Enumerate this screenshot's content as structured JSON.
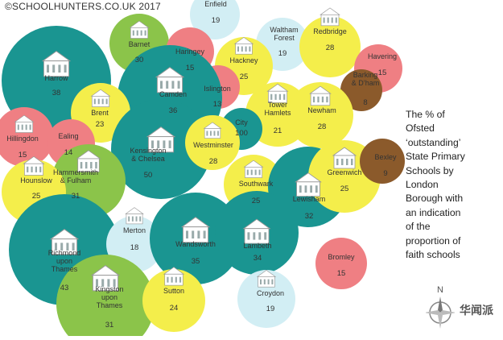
{
  "copyright": "©SCHOOLHUNTERS.CO.UK 2017",
  "caption_lines": [
    "The % of",
    "Ofsted",
    "‘outstanding’",
    "State Primary",
    "Schools by",
    "London",
    "Borough with",
    "an indication",
    "of the",
    "proportion of",
    "faith schools"
  ],
  "compass_label": "N",
  "watermark": "华闻派",
  "colors": {
    "teal": "#1a9591",
    "green": "#8bc44a",
    "yellow": "#f4ee4b",
    "pink": "#ef7f83",
    "lightblue": "#d2eef4",
    "brown": "#8b5a2b"
  },
  "chart_data": {
    "type": "bubble",
    "boroughs": [
      {
        "name": [
          "Harrow"
        ],
        "value": "38",
        "color": "teal"
      },
      {
        "name": [
          "Barnet"
        ],
        "value": "30",
        "color": "green"
      },
      {
        "name": [
          "Enfield"
        ],
        "value": "19",
        "color": "lightblue"
      },
      {
        "name": [
          "Haringey"
        ],
        "value": "15",
        "color": "pink"
      },
      {
        "name": [
          "Waltham",
          "Forest"
        ],
        "value": "19",
        "color": "lightblue"
      },
      {
        "name": [
          "Redbridge"
        ],
        "value": "28",
        "color": "yellow"
      },
      {
        "name": [
          "Havering"
        ],
        "value": "15",
        "color": "pink"
      },
      {
        "name": [
          "Hackney"
        ],
        "value": "25",
        "color": "yellow"
      },
      {
        "name": [
          "Islington"
        ],
        "value": "13",
        "color": "pink"
      },
      {
        "name": [
          "Camden"
        ],
        "value": "36",
        "color": "teal"
      },
      {
        "name": [
          "Brent"
        ],
        "value": "23",
        "color": "yellow"
      },
      {
        "name": [
          "Barking",
          "& D’ham"
        ],
        "value": "8",
        "color": "brown"
      },
      {
        "name": [
          "Tower",
          "Hamlets"
        ],
        "value": "21",
        "color": "yellow"
      },
      {
        "name": [
          "Newham"
        ],
        "value": "28",
        "color": "yellow"
      },
      {
        "name": [
          "City"
        ],
        "value": "100",
        "color": "teal"
      },
      {
        "name": [
          "Hillingdon"
        ],
        "value": "15",
        "color": "pink"
      },
      {
        "name": [
          "Ealing"
        ],
        "value": "14",
        "color": "pink"
      },
      {
        "name": [
          "Kensington",
          "& Chelsea"
        ],
        "value": "50",
        "color": "teal"
      },
      {
        "name": [
          "Westminster"
        ],
        "value": "28",
        "color": "yellow"
      },
      {
        "name": [
          "Hammersmith",
          "& Fulham"
        ],
        "value": "31",
        "color": "green"
      },
      {
        "name": [
          "Hounslow"
        ],
        "value": "25",
        "color": "yellow"
      },
      {
        "name": [
          "Southwark"
        ],
        "value": "25",
        "color": "yellow"
      },
      {
        "name": [
          "Lewisham"
        ],
        "value": "32",
        "color": "teal"
      },
      {
        "name": [
          "Greenwich"
        ],
        "value": "25",
        "color": "yellow"
      },
      {
        "name": [
          "Bexley"
        ],
        "value": "9",
        "color": "brown"
      },
      {
        "name": [
          "Richmond",
          "upon",
          "Thames"
        ],
        "value": "43",
        "color": "teal"
      },
      {
        "name": [
          "Merton"
        ],
        "value": "18",
        "color": "lightblue"
      },
      {
        "name": [
          "Wandsworth"
        ],
        "value": "35",
        "color": "teal"
      },
      {
        "name": [
          "Lambeth"
        ],
        "value": "34",
        "color": "teal"
      },
      {
        "name": [
          "Bromley"
        ],
        "value": "15",
        "color": "pink"
      },
      {
        "name": [
          "Kingston",
          "upon",
          "Thames"
        ],
        "value": "31",
        "color": "green"
      },
      {
        "name": [
          "Sutton"
        ],
        "value": "24",
        "color": "yellow"
      },
      {
        "name": [
          "Croydon"
        ],
        "value": "19",
        "color": "lightblue"
      }
    ]
  }
}
